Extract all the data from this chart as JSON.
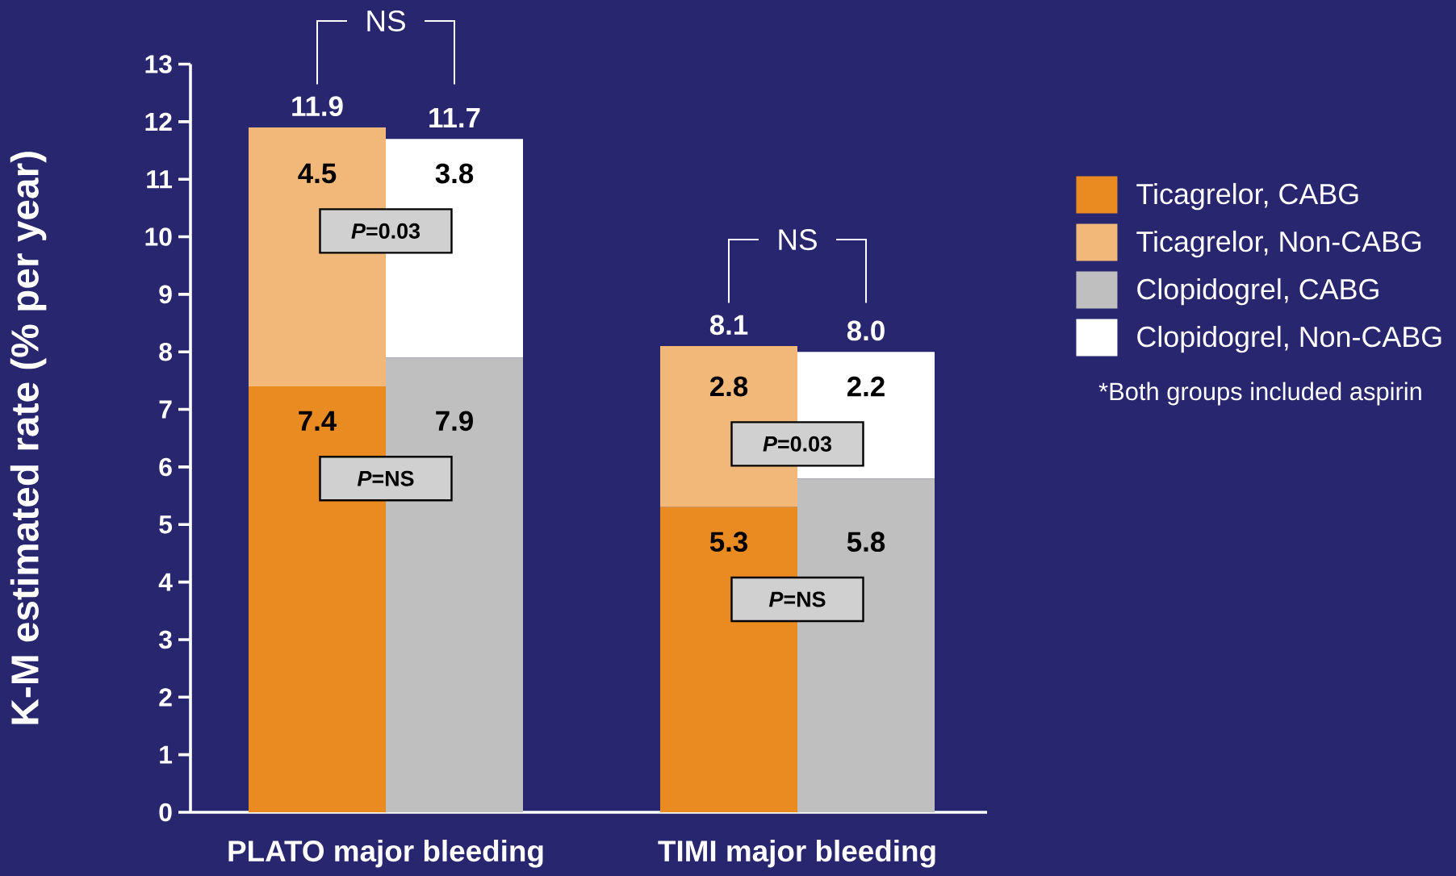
{
  "chart_data": {
    "type": "bar",
    "stacked": true,
    "ylabel": "K-M estimated rate (% per year)",
    "categories": [
      "PLATO major bleeding",
      null,
      null,
      "TIMI major bleeding",
      null
    ],
    "series": [
      {
        "name": "Ticagrelor, CABG",
        "color": "#EA8B22",
        "values": [
          7.4,
          null,
          null,
          5.3,
          null
        ]
      },
      {
        "name": "Ticagrelor, Non-CABG",
        "color": "#F1B87A",
        "values": [
          4.5,
          null,
          null,
          2.8,
          null
        ]
      },
      {
        "name": "Clopidogrel, CABG",
        "color": "#BFBFBF",
        "values": [
          null,
          7.9,
          null,
          null,
          5.8
        ]
      },
      {
        "name": "Clopidogrel, Non-CABG",
        "color": "#FFFFFF",
        "values": [
          null,
          3.8,
          null,
          null,
          2.2
        ]
      }
    ],
    "totals": [
      "11.9",
      "11.7",
      null,
      "8.1",
      "8.0"
    ],
    "data_labels": true,
    "ylim": [
      0,
      13
    ],
    "yticks": [
      0,
      1,
      2,
      3,
      4,
      5,
      6,
      7,
      8,
      9,
      10,
      11,
      12,
      13
    ],
    "legend": "top right",
    "annotations": [
      "NS",
      "NS",
      "*P*=0.03",
      "*P*=NS",
      "*P*=0.03",
      "*P*=NS",
      "*Both groups included aspirin"
    ]
  }
}
